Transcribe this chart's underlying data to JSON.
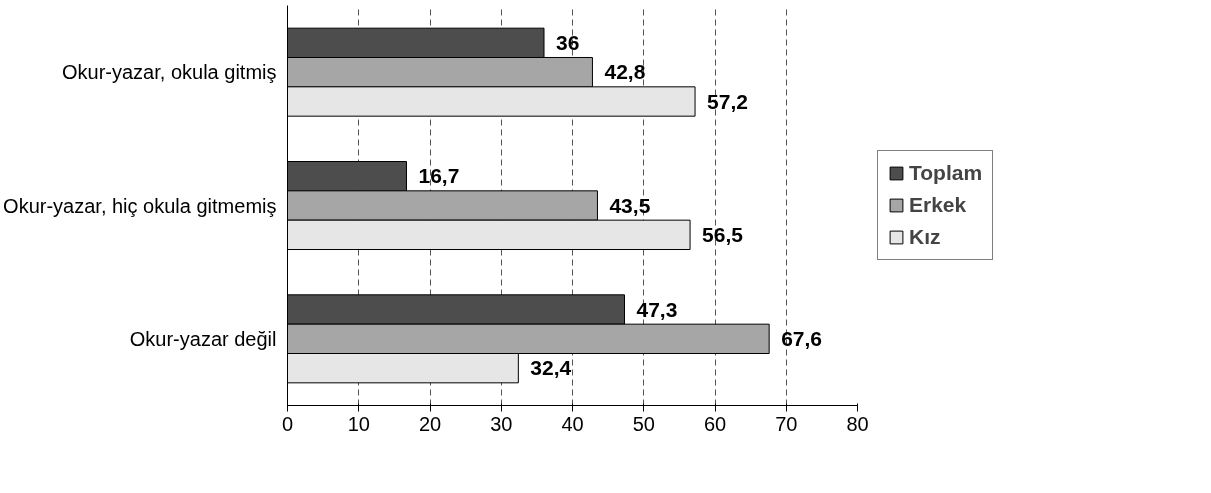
{
  "chart_data": {
    "type": "bar",
    "orientation": "horizontal",
    "categories": [
      "Okur-yazar, okula gitmiş",
      "Okur-yazar, hiç okula gitmemiş",
      "Okur-yazar değil"
    ],
    "series": [
      {
        "name": "Toplam",
        "color": "#4d4d4d",
        "values": [
          36,
          16.7,
          47.3
        ],
        "value_labels": [
          "36",
          "16,7",
          "47,3"
        ]
      },
      {
        "name": "Erkek",
        "color": "#a6a6a6",
        "values": [
          42.8,
          43.5,
          67.6
        ],
        "value_labels": [
          "42,8",
          "43,5",
          "67,6"
        ]
      },
      {
        "name": "Kız",
        "color": "#e6e6e6",
        "values": [
          57.2,
          56.5,
          32.4
        ],
        "value_labels": [
          "57,2",
          "56,5",
          "32,4"
        ]
      }
    ],
    "xlim": [
      0,
      80
    ],
    "xticks": [
      0,
      10,
      20,
      30,
      40,
      50,
      60,
      70,
      80
    ],
    "grid": "x",
    "legend": "right"
  }
}
